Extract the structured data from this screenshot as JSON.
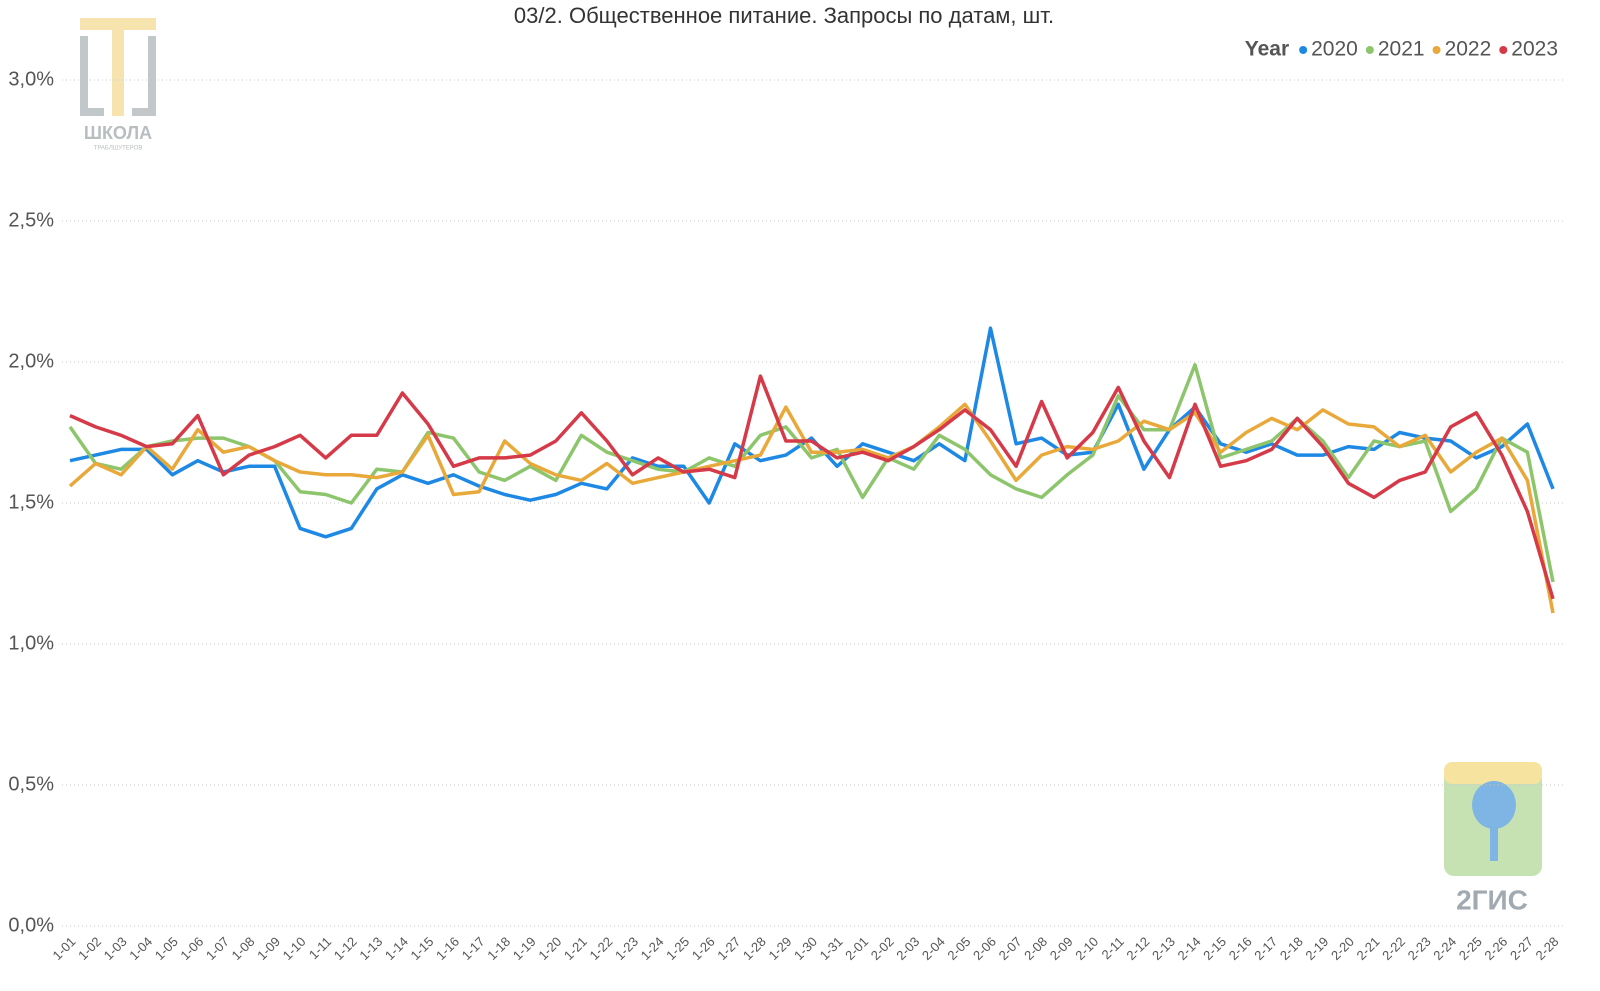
{
  "chart_data": {
    "type": "line",
    "title": "03/2. Общественное питание. Запросы по датам, шт.",
    "legend_title": "Year",
    "legend": "top-right",
    "grid": true,
    "categories": [
      "1-01",
      "1-02",
      "1-03",
      "1-04",
      "1-05",
      "1-06",
      "1-07",
      "1-08",
      "1-09",
      "1-10",
      "1-11",
      "1-12",
      "1-13",
      "1-14",
      "1-15",
      "1-16",
      "1-17",
      "1-18",
      "1-19",
      "1-20",
      "1-21",
      "1-22",
      "1-23",
      "1-24",
      "1-25",
      "1-26",
      "1-27",
      "1-28",
      "1-29",
      "1-30",
      "1-31",
      "2-01",
      "2-02",
      "2-03",
      "2-04",
      "2-05",
      "2-06",
      "2-07",
      "2-08",
      "2-09",
      "2-10",
      "2-11",
      "2-12",
      "2-13",
      "2-14",
      "2-15",
      "2-16",
      "2-17",
      "2-18",
      "2-19",
      "2-20",
      "2-21",
      "2-22",
      "2-23",
      "2-24",
      "2-25",
      "2-26",
      "2-27",
      "2-28"
    ],
    "ylim": [
      0,
      3
    ],
    "yticks": [
      {
        "value": 0,
        "label": "0,0%"
      },
      {
        "value": 0.5,
        "label": "0,5%"
      },
      {
        "value": 1,
        "label": "1,0%"
      },
      {
        "value": 1.5,
        "label": "1,5%"
      },
      {
        "value": 2,
        "label": "2,0%"
      },
      {
        "value": 2.5,
        "label": "2,5%"
      },
      {
        "value": 3,
        "label": "3,0%"
      }
    ],
    "series": [
      {
        "name": "2020",
        "color": "#1e88e5",
        "values": [
          1.65,
          1.67,
          1.69,
          1.69,
          1.6,
          1.65,
          1.61,
          1.63,
          1.63,
          1.41,
          1.38,
          1.41,
          1.55,
          1.6,
          1.57,
          1.6,
          1.56,
          1.53,
          1.51,
          1.53,
          1.57,
          1.55,
          1.66,
          1.63,
          1.63,
          1.5,
          1.71,
          1.65,
          1.67,
          1.73,
          1.63,
          1.71,
          1.68,
          1.65,
          1.71,
          1.65,
          2.12,
          1.71,
          1.73,
          1.67,
          1.68,
          1.85,
          1.62,
          1.76,
          1.84,
          1.71,
          1.68,
          1.71,
          1.67,
          1.67,
          1.7,
          1.69,
          1.75,
          1.73,
          1.72,
          1.66,
          1.7,
          1.78,
          1.55
        ]
      },
      {
        "name": "2021",
        "color": "#8dc56c",
        "values": [
          1.77,
          1.64,
          1.62,
          1.7,
          1.72,
          1.73,
          1.73,
          1.7,
          1.65,
          1.54,
          1.53,
          1.5,
          1.62,
          1.61,
          1.75,
          1.73,
          1.61,
          1.58,
          1.63,
          1.58,
          1.74,
          1.68,
          1.65,
          1.62,
          1.61,
          1.66,
          1.63,
          1.74,
          1.77,
          1.66,
          1.69,
          1.52,
          1.66,
          1.62,
          1.74,
          1.69,
          1.6,
          1.55,
          1.52,
          1.6,
          1.67,
          1.88,
          1.76,
          1.76,
          1.99,
          1.66,
          1.69,
          1.72,
          1.8,
          1.72,
          1.59,
          1.72,
          1.7,
          1.72,
          1.47,
          1.55,
          1.73,
          1.68,
          1.22
        ]
      },
      {
        "name": "2022",
        "color": "#e8a93a",
        "values": [
          1.56,
          1.64,
          1.6,
          1.7,
          1.62,
          1.76,
          1.68,
          1.7,
          1.65,
          1.61,
          1.6,
          1.6,
          1.59,
          1.61,
          1.74,
          1.53,
          1.54,
          1.72,
          1.64,
          1.6,
          1.58,
          1.64,
          1.57,
          1.59,
          1.61,
          1.63,
          1.65,
          1.67,
          1.84,
          1.68,
          1.68,
          1.69,
          1.66,
          1.7,
          1.77,
          1.85,
          1.72,
          1.58,
          1.67,
          1.7,
          1.69,
          1.72,
          1.79,
          1.76,
          1.82,
          1.68,
          1.75,
          1.8,
          1.76,
          1.83,
          1.78,
          1.77,
          1.7,
          1.74,
          1.61,
          1.68,
          1.73,
          1.58,
          1.11
        ]
      },
      {
        "name": "2023",
        "color": "#d63a48",
        "values": [
          1.81,
          1.77,
          1.74,
          1.7,
          1.71,
          1.81,
          1.6,
          1.67,
          1.7,
          1.74,
          1.66,
          1.74,
          1.74,
          1.89,
          1.78,
          1.63,
          1.66,
          1.66,
          1.67,
          1.72,
          1.82,
          1.72,
          1.6,
          1.66,
          1.61,
          1.62,
          1.59,
          1.95,
          1.72,
          1.72,
          1.66,
          1.68,
          1.65,
          1.7,
          1.76,
          1.83,
          1.76,
          1.63,
          1.86,
          1.66,
          1.75,
          1.91,
          1.72,
          1.59,
          1.85,
          1.63,
          1.65,
          1.69,
          1.8,
          1.7,
          1.57,
          1.52,
          1.58,
          1.61,
          1.77,
          1.82,
          1.67,
          1.47,
          1.16
        ]
      }
    ]
  },
  "watermarks": {
    "school_name": "ШКОЛА",
    "school_subtitle": "ТРАБЛШУТЕРОВ",
    "brand": "2ГИС"
  }
}
